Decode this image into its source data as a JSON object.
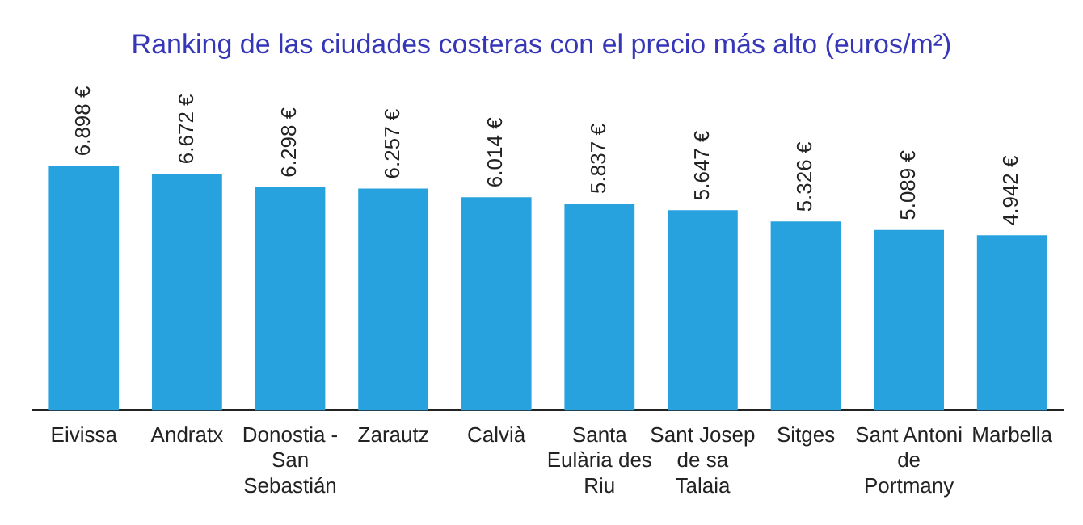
{
  "chart_data": {
    "type": "bar",
    "title": "Ranking de las ciudades costeras con el precio más alto (euros/m²)",
    "categories": [
      "Eivissa",
      "Andratx",
      "Donostia - San Sebastián",
      "Zarautz",
      "Calvià",
      "Santa Eulària des Riu",
      "Sant Josep de sa Talaia",
      "Sitges",
      "Sant Antoni de Portmany",
      "Marbella"
    ],
    "values": [
      6898,
      6672,
      6298,
      6257,
      6014,
      5837,
      5647,
      5326,
      5089,
      4942
    ],
    "value_labels": [
      "6.898 €",
      "6.672 €",
      "6.298 €",
      "6.257 €",
      "6.014 €",
      "5.837 €",
      "5.647 €",
      "5.326 €",
      "5.089 €",
      "4.942 €"
    ],
    "color": "#27a2df",
    "grid": false,
    "legend": false
  }
}
